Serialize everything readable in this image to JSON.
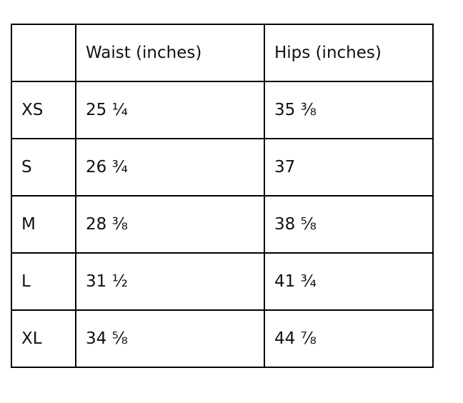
{
  "table": {
    "columns": [
      "Waist (inches)",
      "Hips (inches)"
    ],
    "rows": [
      [
        "XS",
        "25 ¼",
        "35 ⅜"
      ],
      [
        "S",
        "26 ¾",
        "37"
      ],
      [
        "M",
        "28 ⅜",
        "38 ⅝"
      ],
      [
        "L",
        "31 ½",
        "41 ¾"
      ],
      [
        "XL",
        "34 ⅝",
        "44 ⅞"
      ]
    ]
  }
}
